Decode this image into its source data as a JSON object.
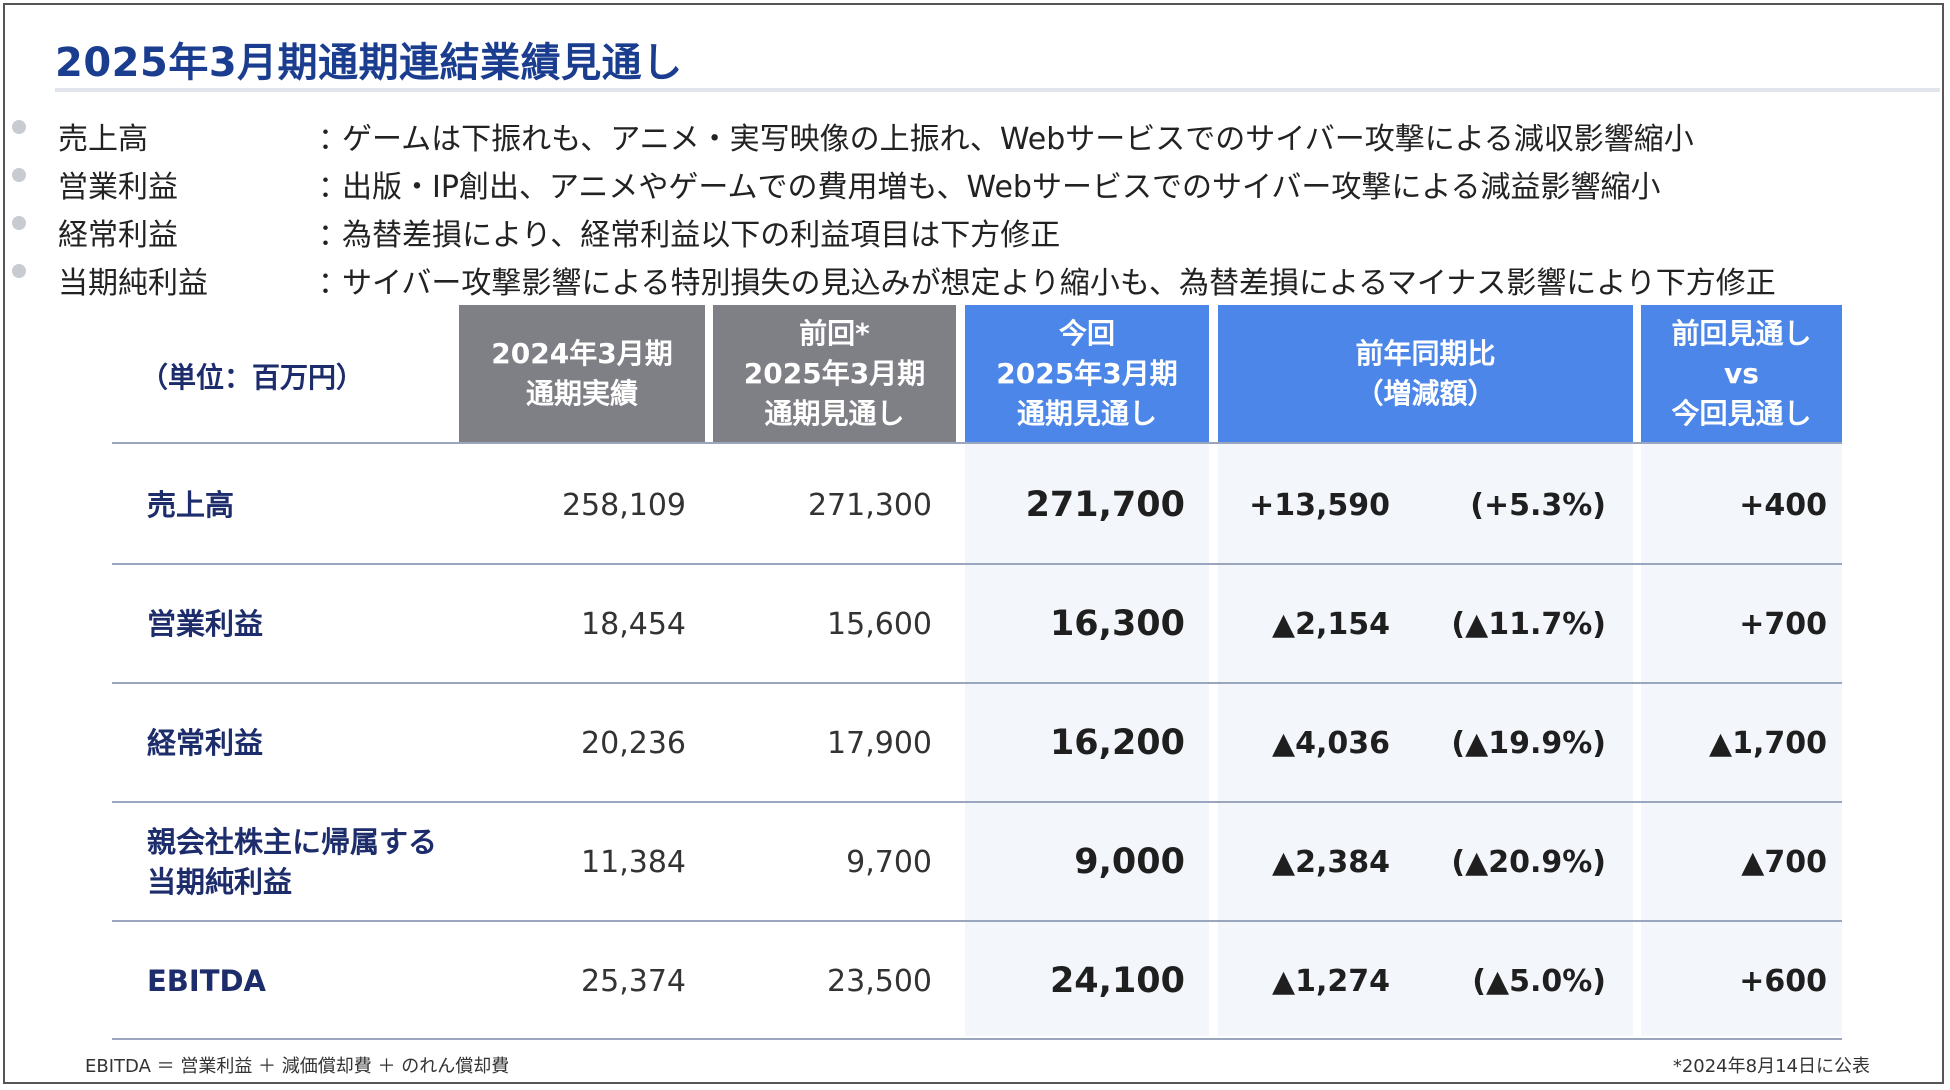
{
  "title": "2025年3月期通期連結業績見通し",
  "bullets": [
    {
      "term": "売上高",
      "colon": "：",
      "desc": "ゲームは下振れも、アニメ・実写映像の上振れ、Webサービスでのサイバー攻撃による減収影響縮小"
    },
    {
      "term": "営業利益",
      "colon": "：",
      "desc": "出版・IP創出、アニメやゲームでの費用増も、Webサービスでのサイバー攻撃による減益影響縮小"
    },
    {
      "term": "経常利益",
      "colon": "：",
      "desc": "為替差損により、経常利益以下の利益項目は下方修正"
    },
    {
      "term": "当期純利益",
      "colon": "：",
      "desc": "サイバー攻撃影響による特別損失の見込みが想定より縮小も、為替差損によるマイナス影響により下方修正"
    }
  ],
  "table": {
    "unit": "（単位：百万円）",
    "headers": {
      "fy2024": [
        "2024年3月期",
        "通期実績"
      ],
      "prev": [
        "前回*",
        "2025年3月期",
        "通期見通し"
      ],
      "curr": [
        "今回",
        "2025年3月期",
        "通期見通し"
      ],
      "yoy": [
        "前年同期比",
        "（増減額）"
      ],
      "vs": [
        "前回見通し",
        "vs",
        "今回見通し"
      ]
    },
    "rows": [
      {
        "label": [
          "売上高"
        ],
        "fy2024": "258,109",
        "prev": "271,300",
        "curr": "271,700",
        "yoy_amt": "+13,590",
        "yoy_pct": "(+5.3%)",
        "vs": "+400"
      },
      {
        "label": [
          "営業利益"
        ],
        "fy2024": "18,454",
        "prev": "15,600",
        "curr": "16,300",
        "yoy_amt": "▲2,154",
        "yoy_pct": "(▲11.7%)",
        "vs": "+700"
      },
      {
        "label": [
          "経常利益"
        ],
        "fy2024": "20,236",
        "prev": "17,900",
        "curr": "16,200",
        "yoy_amt": "▲4,036",
        "yoy_pct": "(▲19.9%)",
        "vs": "▲1,700"
      },
      {
        "label": [
          "親会社株主に帰属する",
          "当期純利益"
        ],
        "fy2024": "11,384",
        "prev": "9,700",
        "curr": "9,000",
        "yoy_amt": "▲2,384",
        "yoy_pct": "(▲20.9%)",
        "vs": "▲700"
      },
      {
        "label": [
          "EBITDA"
        ],
        "fy2024": "25,374",
        "prev": "23,500",
        "curr": "24,100",
        "yoy_amt": "▲1,274",
        "yoy_pct": "(▲5.0%)",
        "vs": "+600"
      }
    ]
  },
  "footnotes": {
    "left": "EBITDA ＝ 営業利益 ＋ 減価償却費 ＋ のれん償却費",
    "right": "*2024年8月14日に公表"
  }
}
